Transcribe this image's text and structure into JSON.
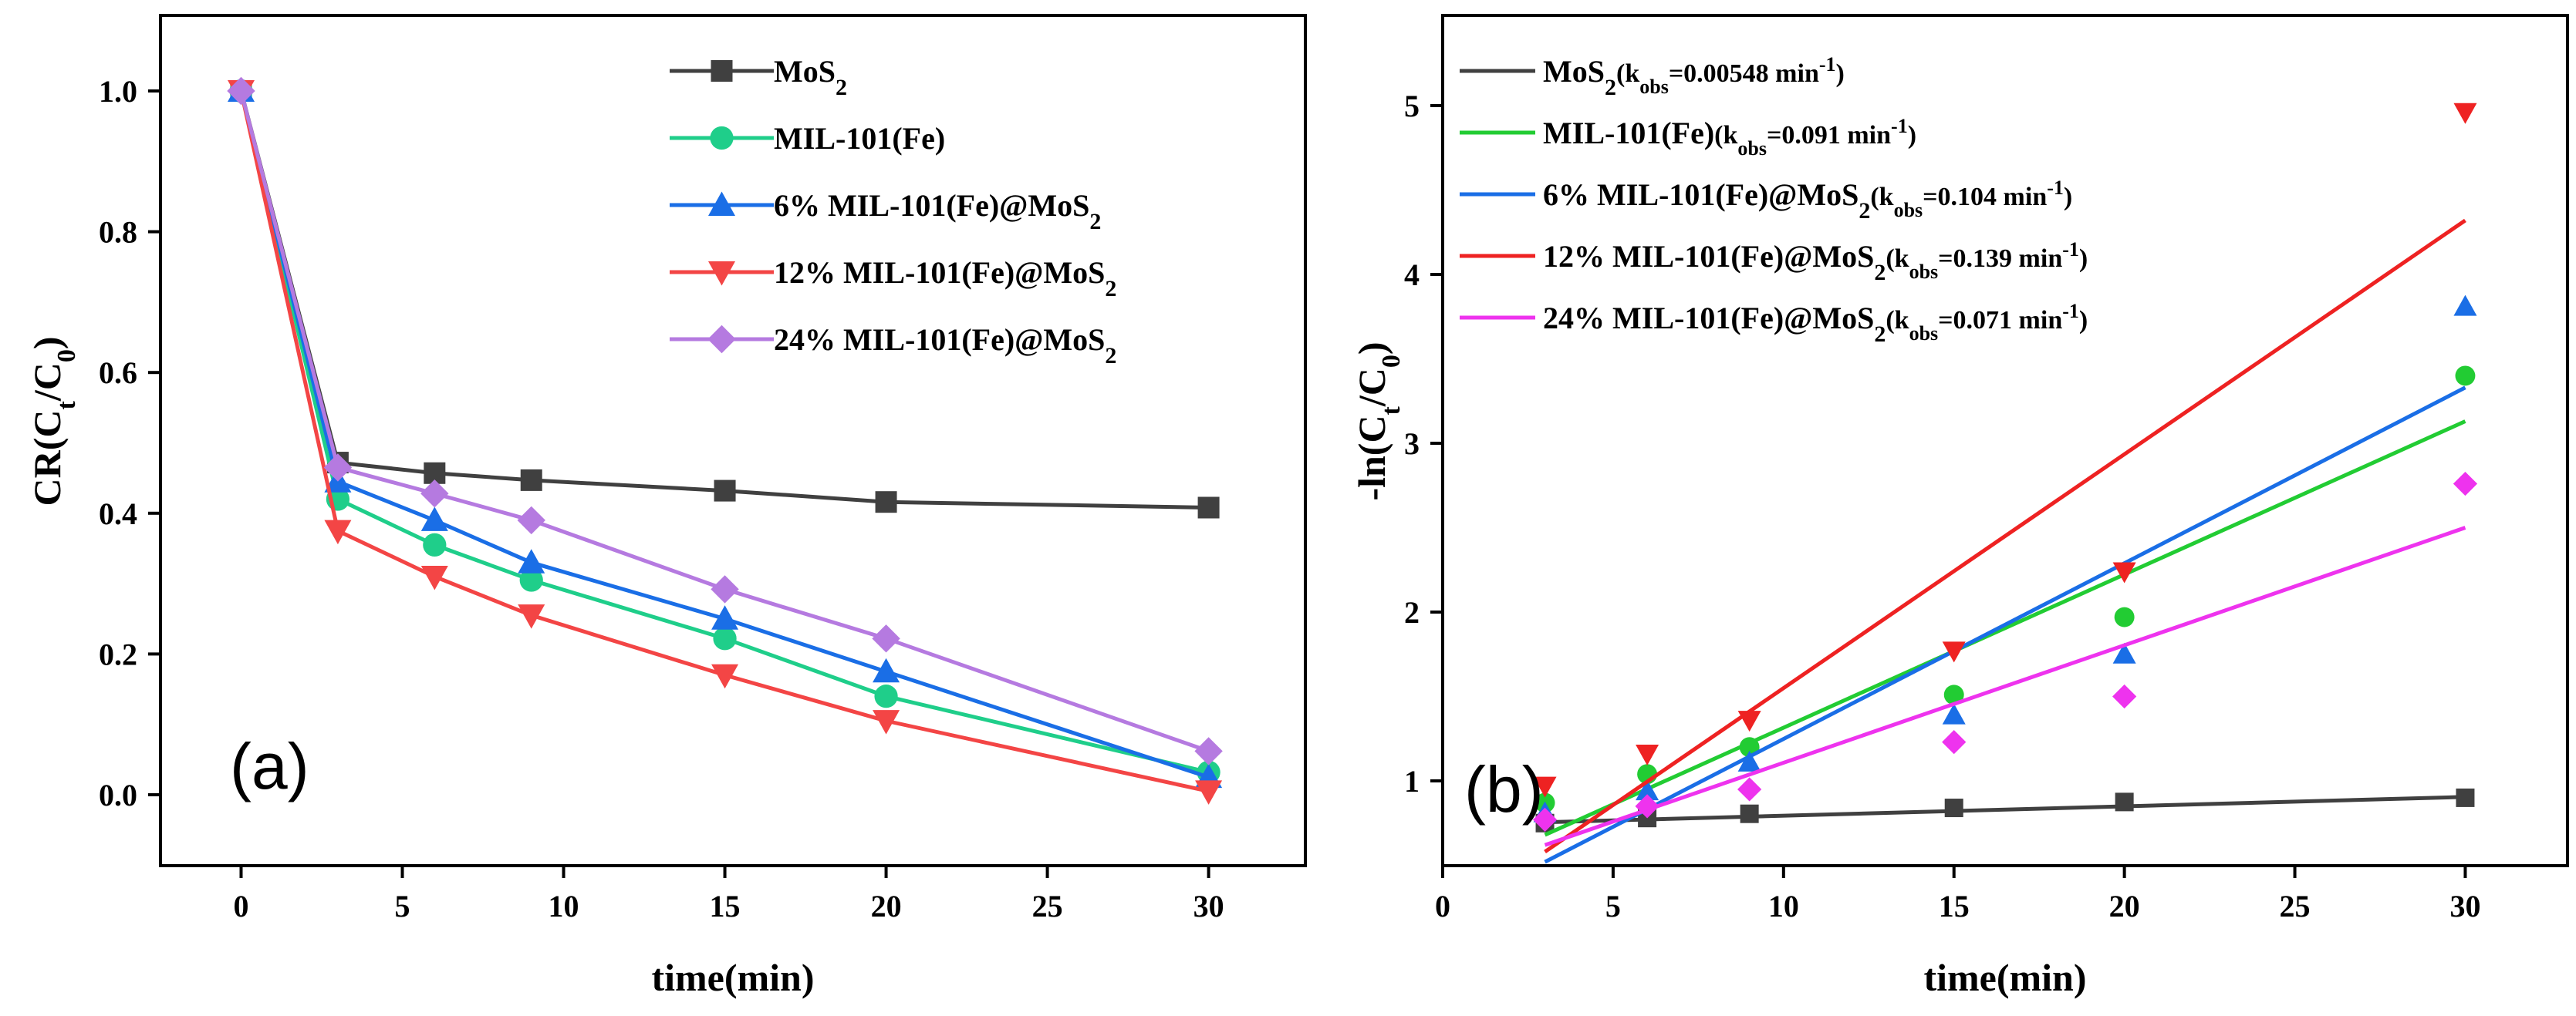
{
  "chart_data": [
    {
      "type": "line",
      "panel_label": "(a)",
      "xlabel": "time(min)",
      "ylabel": "CR(C",
      "ylabel_sub1": "t",
      "ylabel_mid": "/C",
      "ylabel_sub2": "0",
      "ylabel_end": ")",
      "xlim": [
        -2.5,
        33
      ],
      "ylim": [
        -0.1,
        1.1
      ],
      "xticks": [
        0,
        5,
        10,
        15,
        20,
        25,
        30
      ],
      "yticks": [
        0.0,
        0.2,
        0.4,
        0.6,
        0.8,
        1.0
      ],
      "ytick_labels": [
        "0.0",
        "0.2",
        "0.4",
        "0.6",
        "0.8",
        "1.0"
      ],
      "legend_position": "top-right",
      "series": [
        {
          "name": "MoS",
          "name_sub": "2",
          "color": "#404040",
          "marker": "square",
          "x": [
            0,
            3,
            6,
            9,
            15,
            20,
            30
          ],
          "y": [
            1.0,
            0.472,
            0.457,
            0.447,
            0.432,
            0.416,
            0.408
          ]
        },
        {
          "name": "MIL-101(Fe)",
          "name_sub": "",
          "color": "#1fce8a",
          "marker": "circle",
          "x": [
            0,
            3,
            6,
            9,
            15,
            20,
            30
          ],
          "y": [
            1.0,
            0.42,
            0.355,
            0.305,
            0.222,
            0.14,
            0.032
          ]
        },
        {
          "name": "6% MIL-101(Fe)@MoS",
          "name_sub": "2",
          "color": "#1a6ee6",
          "marker": "triangle-up",
          "x": [
            0,
            3,
            6,
            9,
            15,
            20,
            30
          ],
          "y": [
            1.0,
            0.445,
            0.39,
            0.33,
            0.25,
            0.175,
            0.025
          ]
        },
        {
          "name": "12% MIL-101(Fe)@MoS",
          "name_sub": "2",
          "color": "#f34545",
          "marker": "triangle-down",
          "x": [
            0,
            3,
            6,
            9,
            15,
            20,
            30
          ],
          "y": [
            1.0,
            0.375,
            0.31,
            0.255,
            0.17,
            0.105,
            0.005
          ]
        },
        {
          "name": "24% MIL-101(Fe)@MoS",
          "name_sub": "2",
          "color": "#b57ae0",
          "marker": "diamond",
          "x": [
            0,
            3,
            6,
            9,
            15,
            20,
            30
          ],
          "y": [
            1.0,
            0.465,
            0.428,
            0.39,
            0.292,
            0.222,
            0.062
          ]
        }
      ]
    },
    {
      "type": "scatter",
      "panel_label": "(b)",
      "xlabel": "time(min)",
      "ylabel": "-ln(C",
      "ylabel_sub1": "t",
      "ylabel_mid": "/C",
      "ylabel_sub2": "0",
      "ylabel_end": ")",
      "xlim": [
        0,
        33
      ],
      "ylim": [
        0.5,
        5.5
      ],
      "xticks": [
        0,
        5,
        10,
        15,
        20,
        25,
        30
      ],
      "yticks": [
        1,
        2,
        3,
        4,
        5
      ],
      "ytick_labels": [
        "1",
        "2",
        "3",
        "4",
        "5"
      ],
      "legend_position": "top-left",
      "series": [
        {
          "name": "MoS",
          "name_sub": "2",
          "k_text": "(k",
          "k_sub": "obs",
          "k_value": "=0.00548 min",
          "k_sup": "-1",
          "k_end": ")",
          "color": "#404040",
          "marker": "square",
          "x": [
            3,
            6,
            9,
            15,
            20,
            30
          ],
          "y": [
            0.75,
            0.78,
            0.805,
            0.84,
            0.875,
            0.9
          ],
          "fit": {
            "x": [
              3,
              30
            ],
            "y": [
              0.755,
              0.905
            ]
          }
        },
        {
          "name": "MIL-101(Fe)",
          "name_sub": "",
          "k_text": "(k",
          "k_sub": "obs",
          "k_value": "=0.091 min",
          "k_sup": "-1",
          "k_end": ")",
          "color": "#22cc33",
          "marker": "circle",
          "x": [
            3,
            6,
            9,
            15,
            20,
            30
          ],
          "y": [
            0.87,
            1.04,
            1.2,
            1.51,
            1.97,
            3.4
          ],
          "fit": {
            "x": [
              3,
              30
            ],
            "y": [
              0.68,
              3.13
            ]
          }
        },
        {
          "name": "6% MIL-101(Fe)@MoS",
          "name_sub": "2",
          "k_text": "(k",
          "k_sub": "obs",
          "k_value": "=0.104 min",
          "k_sup": "-1",
          "k_end": ")",
          "color": "#1a6ee6",
          "marker": "triangle-up",
          "x": [
            3,
            6,
            9,
            15,
            20,
            30
          ],
          "y": [
            0.81,
            0.94,
            1.11,
            1.39,
            1.75,
            3.81
          ],
          "fit": {
            "x": [
              3,
              30
            ],
            "y": [
              0.52,
              3.33
            ]
          }
        },
        {
          "name": "12% MIL-101(Fe)@MoS",
          "name_sub": "2",
          "k_text": "(k",
          "k_sub": "obs",
          "k_value": "=0.139 min",
          "k_sup": "-1",
          "k_end": ")",
          "color": "#ee2222",
          "marker": "triangle-down",
          "x": [
            3,
            6,
            9,
            15,
            20,
            30
          ],
          "y": [
            0.97,
            1.16,
            1.36,
            1.77,
            2.24,
            4.96
          ],
          "fit": {
            "x": [
              3,
              30
            ],
            "y": [
              0.58,
              4.32
            ]
          }
        },
        {
          "name": "24% MIL-101(Fe)@MoS",
          "name_sub": "2",
          "k_text": "(k",
          "k_sub": "obs",
          "k_value": "=0.071 min",
          "k_sup": "-1",
          "k_end": ")",
          "color": "#ee33ee",
          "marker": "diamond",
          "x": [
            3,
            6,
            9,
            15,
            20,
            30
          ],
          "y": [
            0.77,
            0.85,
            0.95,
            1.23,
            1.5,
            2.76
          ],
          "fit": {
            "x": [
              3,
              30
            ],
            "y": [
              0.62,
              2.5
            ]
          }
        }
      ]
    }
  ]
}
